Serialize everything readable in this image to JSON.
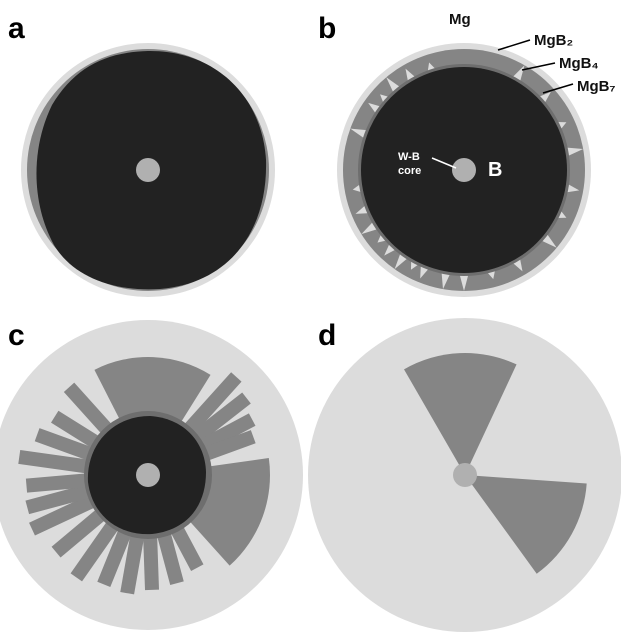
{
  "panels": [
    {
      "label": "a"
    },
    {
      "label": "b",
      "annotations": {
        "outer": "Mg",
        "layer1": "MgB₂",
        "layer2": "MgB₄",
        "layer3": "MgB₇",
        "core": [
          "W-B",
          "core"
        ],
        "inner": "B"
      }
    },
    {
      "label": "c"
    },
    {
      "label": "d"
    }
  ]
}
